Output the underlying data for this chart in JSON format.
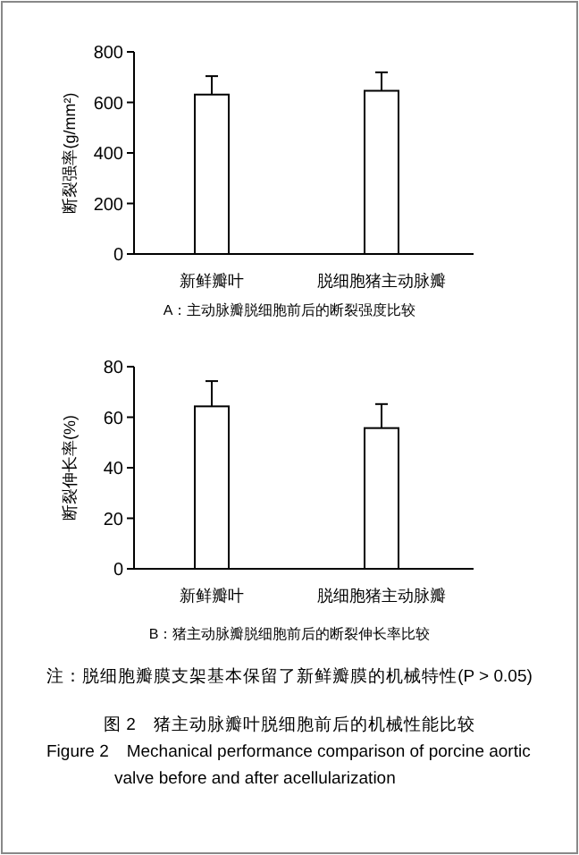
{
  "chart_data": [
    {
      "type": "bar",
      "ylabel": "断裂强率(g/mm²)",
      "categories": [
        "新鲜瓣叶",
        "脱细胞猪主动脉瓣"
      ],
      "values": [
        631,
        646
      ],
      "errors": [
        73,
        73
      ],
      "color": "#ffffff",
      "ylim": [
        0,
        800
      ],
      "yticks": [
        0,
        200,
        400,
        600,
        800
      ],
      "annotations": [
        "A：主动脉瓣脱细胞前后的断裂强度比较"
      ]
    },
    {
      "type": "bar",
      "ylabel": "断裂伸长率(%)",
      "categories": [
        "新鲜瓣叶",
        "脱细胞猪主动脉瓣"
      ],
      "values": [
        64.3,
        55.7
      ],
      "errors": [
        10,
        9.5
      ],
      "color": "#ffffff",
      "ylim": [
        0,
        80
      ],
      "yticks": [
        0,
        20,
        40,
        60,
        80
      ],
      "annotations": [
        "B：猪主动脉瓣脱细胞前后的断裂伸长率比较",
        "注：脱细胞瓣膜支架基本保留了新鲜瓣膜的机械特性(P > 0.05)",
        "图 2　猪主动脉瓣叶脱细胞前后的机械性能比较",
        "Figure 2　Mechanical performance comparison of porcine aortic valve before and after acellularization"
      ]
    }
  ]
}
